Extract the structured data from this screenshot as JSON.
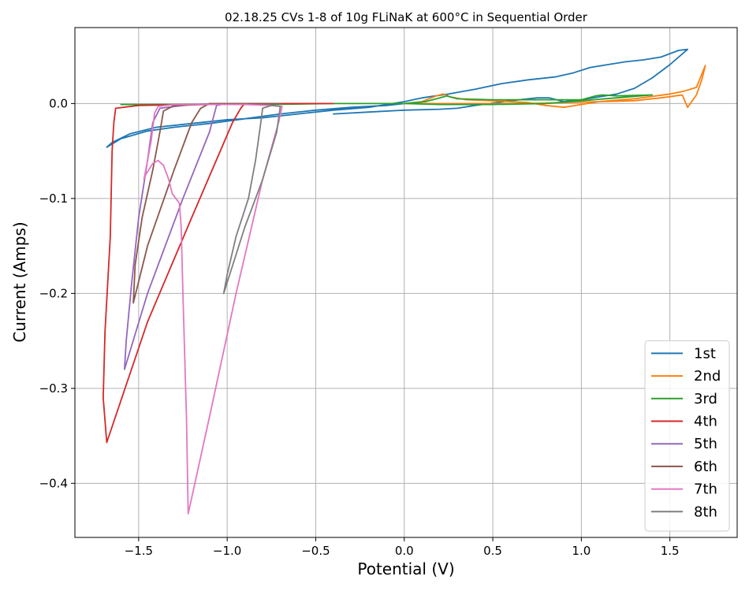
{
  "chart_data": {
    "type": "line",
    "title": "02.18.25 CVs 1-8 of 10g FLiNaK at 600°C in Sequential Order",
    "xlabel": "Potential (V)",
    "ylabel": "Current (Amps)",
    "xlim": [
      -1.86,
      1.88
    ],
    "ylim": [
      -0.457,
      0.08
    ],
    "xticks": [
      -1.5,
      -1.0,
      -0.5,
      0.0,
      0.5,
      1.0,
      1.5
    ],
    "xtick_labels": [
      "−1.5",
      "−1.0",
      "−0.5",
      "0.0",
      "0.5",
      "1.0",
      "1.5"
    ],
    "yticks": [
      -0.4,
      -0.3,
      -0.2,
      -0.1,
      0.0
    ],
    "ytick_labels": [
      "−0.4",
      "−0.3",
      "−0.2",
      "−0.1",
      "0.0"
    ],
    "grid": true,
    "legend_position": "lower-right",
    "series": [
      {
        "name": "1st",
        "color": "#1f77b4",
        "points": [
          [
            -0.4,
            -0.011
          ],
          [
            -0.2,
            -0.009
          ],
          [
            0.0,
            -0.007
          ],
          [
            0.2,
            -0.006
          ],
          [
            0.3,
            -0.005
          ],
          [
            0.4,
            -0.002
          ],
          [
            0.6,
            0.003
          ],
          [
            0.75,
            0.006
          ],
          [
            0.82,
            0.006
          ],
          [
            0.9,
            0.002
          ],
          [
            1.0,
            0.004
          ],
          [
            1.1,
            0.007
          ],
          [
            1.2,
            0.01
          ],
          [
            1.3,
            0.016
          ],
          [
            1.4,
            0.027
          ],
          [
            1.5,
            0.041
          ],
          [
            1.6,
            0.057
          ],
          [
            1.55,
            0.056
          ],
          [
            1.45,
            0.049
          ],
          [
            1.35,
            0.046
          ],
          [
            1.25,
            0.044
          ],
          [
            1.15,
            0.041
          ],
          [
            1.05,
            0.038
          ],
          [
            0.95,
            0.032
          ],
          [
            0.85,
            0.028
          ],
          [
            0.7,
            0.025
          ],
          [
            0.55,
            0.021
          ],
          [
            0.4,
            0.015
          ],
          [
            0.25,
            0.01
          ],
          [
            0.1,
            0.006
          ],
          [
            0.0,
            0.002
          ],
          [
            -0.2,
            -0.004
          ],
          [
            -0.4,
            -0.007
          ],
          [
            -0.6,
            -0.011
          ],
          [
            -0.8,
            -0.015
          ],
          [
            -1.0,
            -0.017
          ],
          [
            -1.2,
            -0.021
          ],
          [
            -1.4,
            -0.025
          ],
          [
            -1.55,
            -0.032
          ],
          [
            -1.65,
            -0.041
          ],
          [
            -1.68,
            -0.046
          ],
          [
            -1.6,
            -0.037
          ],
          [
            -1.45,
            -0.029
          ],
          [
            -1.3,
            -0.025
          ],
          [
            -1.1,
            -0.021
          ],
          [
            -0.9,
            -0.016
          ],
          [
            -0.7,
            -0.011
          ],
          [
            -0.5,
            -0.007
          ],
          [
            -0.3,
            -0.004
          ],
          [
            -0.1,
            -0.002
          ],
          [
            0.0,
            0.0
          ]
        ]
      },
      {
        "name": "2nd",
        "color": "#ff7f0e",
        "points": [
          [
            0.0,
            0.0
          ],
          [
            0.1,
            0.002
          ],
          [
            0.18,
            0.008
          ],
          [
            0.22,
            0.01
          ],
          [
            0.26,
            0.007
          ],
          [
            0.35,
            0.004
          ],
          [
            0.5,
            0.003
          ],
          [
            0.7,
            0.001
          ],
          [
            0.8,
            -0.002
          ],
          [
            0.9,
            -0.004
          ],
          [
            1.0,
            -0.001
          ],
          [
            1.1,
            0.002
          ],
          [
            1.3,
            0.005
          ],
          [
            1.5,
            0.01
          ],
          [
            1.58,
            0.013
          ],
          [
            1.65,
            0.017
          ],
          [
            1.7,
            0.04
          ],
          [
            1.68,
            0.025
          ],
          [
            1.65,
            0.009
          ],
          [
            1.6,
            -0.004
          ],
          [
            1.57,
            0.009
          ],
          [
            1.45,
            0.006
          ],
          [
            1.3,
            0.003
          ],
          [
            1.1,
            0.002
          ],
          [
            0.9,
            0.001
          ],
          [
            0.7,
            0.0
          ],
          [
            0.5,
            0.0
          ],
          [
            0.3,
            0.0
          ],
          [
            0.1,
            0.0
          ],
          [
            0.0,
            0.0
          ]
        ]
      },
      {
        "name": "3rd",
        "color": "#2ca02c",
        "points": [
          [
            -1.6,
            -0.001
          ],
          [
            -1.2,
            -0.001
          ],
          [
            -0.8,
            -0.001
          ],
          [
            -0.4,
            0.0
          ],
          [
            0.0,
            0.0
          ],
          [
            0.12,
            0.002
          ],
          [
            0.2,
            0.006
          ],
          [
            0.24,
            0.008
          ],
          [
            0.3,
            0.005
          ],
          [
            0.5,
            0.004
          ],
          [
            0.8,
            0.004
          ],
          [
            1.0,
            0.004
          ],
          [
            1.08,
            0.008
          ],
          [
            1.12,
            0.009
          ],
          [
            1.2,
            0.008
          ],
          [
            1.4,
            0.009
          ],
          [
            1.2,
            0.006
          ],
          [
            1.0,
            0.003
          ],
          [
            0.8,
            0.0
          ],
          [
            0.5,
            -0.001
          ],
          [
            0.2,
            -0.001
          ],
          [
            0.0,
            0.0
          ]
        ]
      },
      {
        "name": "4th",
        "color": "#d62728",
        "points": [
          [
            -0.4,
            0.0
          ],
          [
            -0.9,
            0.0
          ],
          [
            -0.92,
            -0.004
          ],
          [
            -0.97,
            -0.02
          ],
          [
            -1.2,
            -0.12
          ],
          [
            -1.45,
            -0.23
          ],
          [
            -1.68,
            -0.357
          ],
          [
            -1.7,
            -0.31
          ],
          [
            -1.69,
            -0.24
          ],
          [
            -1.66,
            -0.14
          ],
          [
            -1.65,
            -0.05
          ],
          [
            -1.64,
            -0.02
          ],
          [
            -1.63,
            -0.005
          ],
          [
            -1.5,
            -0.002
          ],
          [
            -1.2,
            -0.001
          ],
          [
            -0.8,
            0.0
          ],
          [
            -0.4,
            0.0
          ]
        ]
      },
      {
        "name": "5th",
        "color": "#9467bd",
        "points": [
          [
            -0.7,
            0.0
          ],
          [
            -1.0,
            0.0
          ],
          [
            -1.06,
            -0.002
          ],
          [
            -1.1,
            -0.03
          ],
          [
            -1.25,
            -0.1
          ],
          [
            -1.45,
            -0.2
          ],
          [
            -1.58,
            -0.28
          ],
          [
            -1.57,
            -0.25
          ],
          [
            -1.54,
            -0.19
          ],
          [
            -1.5,
            -0.12
          ],
          [
            -1.45,
            -0.06
          ],
          [
            -1.42,
            -0.02
          ],
          [
            -1.38,
            -0.005
          ],
          [
            -1.2,
            -0.001
          ],
          [
            -1.0,
            0.0
          ],
          [
            -0.7,
            0.0
          ]
        ]
      },
      {
        "name": "6th",
        "color": "#8c564b",
        "points": [
          [
            -0.7,
            0.0
          ],
          [
            -1.1,
            0.0
          ],
          [
            -1.15,
            -0.005
          ],
          [
            -1.2,
            -0.02
          ],
          [
            -1.3,
            -0.07
          ],
          [
            -1.45,
            -0.15
          ],
          [
            -1.53,
            -0.21
          ],
          [
            -1.52,
            -0.17
          ],
          [
            -1.48,
            -0.12
          ],
          [
            -1.42,
            -0.07
          ],
          [
            -1.38,
            -0.03
          ],
          [
            -1.36,
            -0.008
          ],
          [
            -1.3,
            -0.002
          ],
          [
            -1.1,
            -0.001
          ],
          [
            -0.7,
            0.0
          ]
        ]
      },
      {
        "name": "7th",
        "color": "#e377c2",
        "points": [
          [
            -0.69,
            -0.003
          ],
          [
            -0.71,
            -0.02
          ],
          [
            -0.8,
            -0.08
          ],
          [
            -0.95,
            -0.2
          ],
          [
            -1.1,
            -0.33
          ],
          [
            -1.22,
            -0.432
          ],
          [
            -1.23,
            -0.33
          ],
          [
            -1.25,
            -0.2
          ],
          [
            -1.26,
            -0.13
          ],
          [
            -1.27,
            -0.105
          ],
          [
            -1.31,
            -0.095
          ],
          [
            -1.33,
            -0.08
          ],
          [
            -1.36,
            -0.065
          ],
          [
            -1.39,
            -0.06
          ],
          [
            -1.42,
            -0.063
          ],
          [
            -1.46,
            -0.075
          ],
          [
            -1.47,
            -0.08
          ],
          [
            -1.43,
            -0.04
          ],
          [
            -1.41,
            -0.01
          ],
          [
            -1.39,
            -0.003
          ],
          [
            -1.3,
            -0.001
          ],
          [
            -1.1,
            -0.001
          ],
          [
            -0.9,
            -0.001
          ],
          [
            -0.75,
            -0.002
          ],
          [
            -0.69,
            -0.003
          ]
        ]
      },
      {
        "name": "8th",
        "color": "#7f7f7f",
        "points": [
          [
            -0.7,
            -0.003
          ],
          [
            -0.72,
            -0.03
          ],
          [
            -0.8,
            -0.08
          ],
          [
            -0.9,
            -0.13
          ],
          [
            -1.02,
            -0.2
          ],
          [
            -1.0,
            -0.18
          ],
          [
            -0.95,
            -0.14
          ],
          [
            -0.88,
            -0.1
          ],
          [
            -0.84,
            -0.06
          ],
          [
            -0.81,
            -0.02
          ],
          [
            -0.8,
            -0.005
          ],
          [
            -0.75,
            -0.002
          ],
          [
            -0.7,
            -0.003
          ]
        ]
      }
    ]
  }
}
